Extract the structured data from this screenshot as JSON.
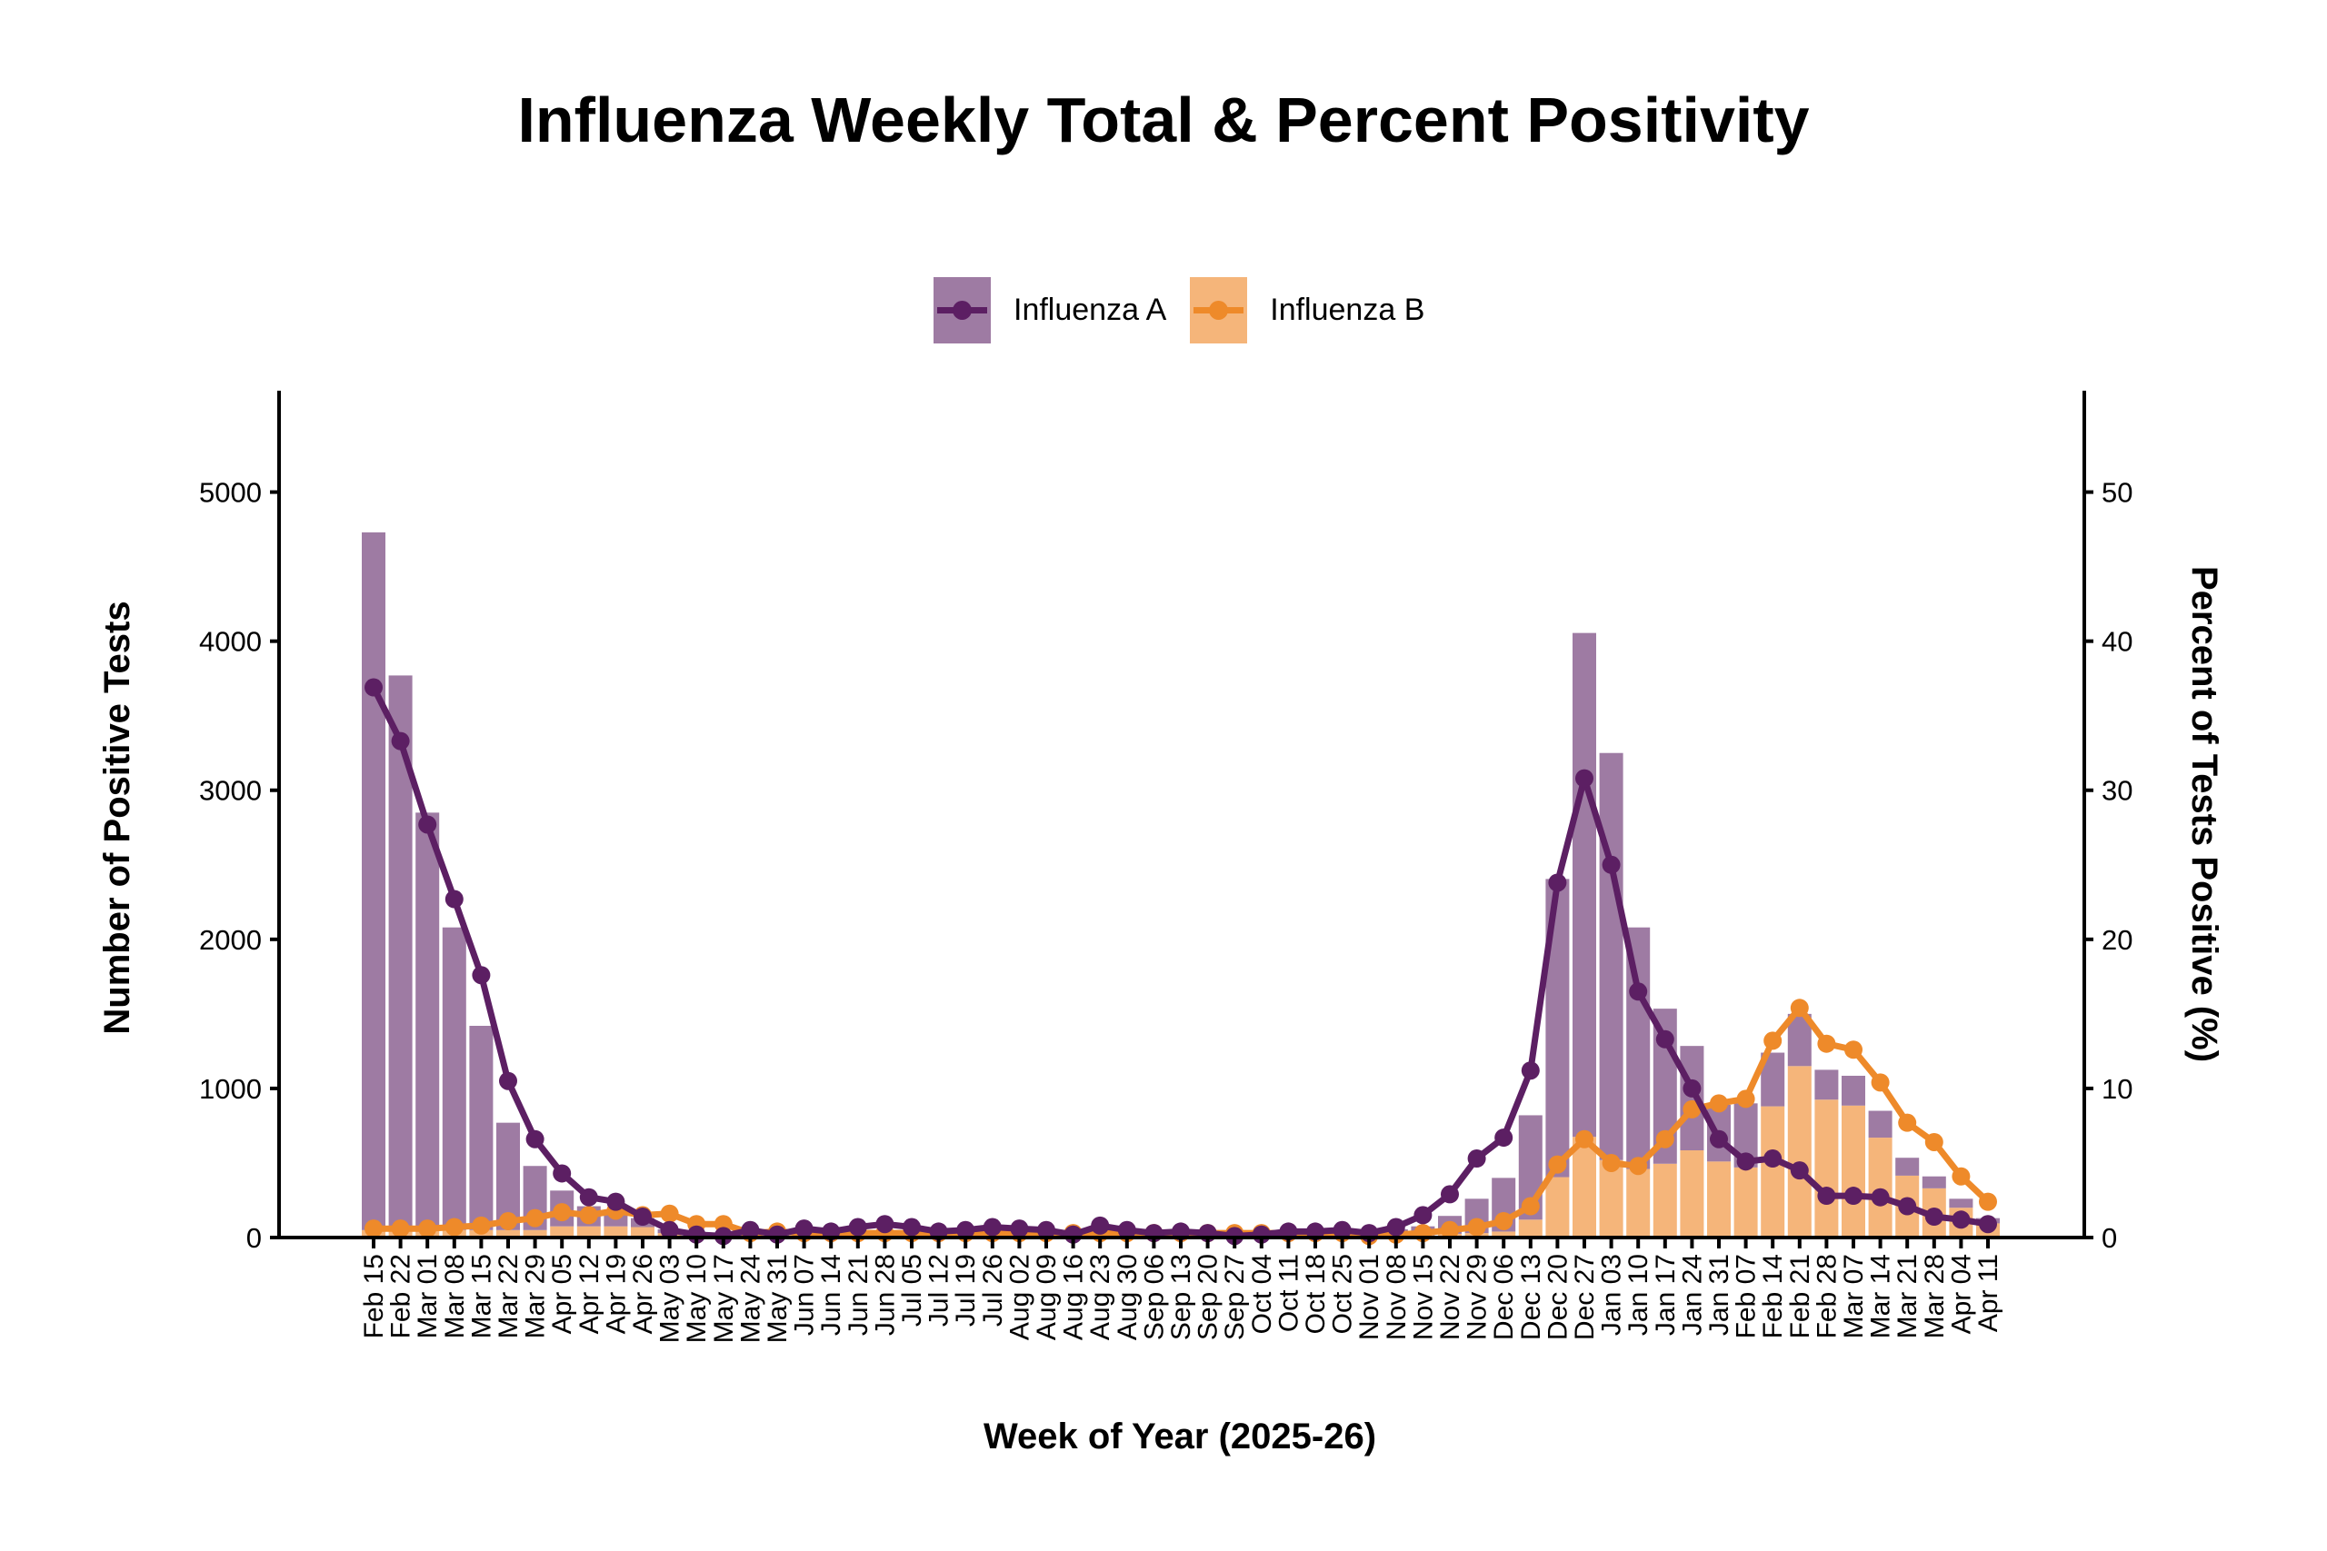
{
  "chart_data": {
    "type": "bar+line",
    "title": "Influenza Weekly Total & Percent Positivity",
    "xlabel": "Week of Year (2025-26)",
    "ylabel": "Number of Positive Tests",
    "ylabel_right": "Percent of Tests Positive (%)",
    "ylim": [
      0,
      5680
    ],
    "ylim_right": [
      0,
      56.8
    ],
    "yticks": [
      0,
      1000,
      2000,
      3000,
      4000,
      5000
    ],
    "yticks_right": [
      0,
      10,
      20,
      30,
      40,
      50
    ],
    "grid": false,
    "legend_position": "top-center",
    "categories": [
      "Feb 15",
      "Feb 22",
      "Mar 01",
      "Mar 08",
      "Mar 15",
      "Mar 22",
      "Mar 29",
      "Apr 05",
      "Apr 12",
      "Apr 19",
      "Apr 26",
      "May 03",
      "May 10",
      "May 17",
      "May 24",
      "May 31",
      "Jun 07",
      "Jun 14",
      "Jun 21",
      "Jun 28",
      "Jul 05",
      "Jul 12",
      "Jul 19",
      "Jul 26",
      "Aug 02",
      "Aug 09",
      "Aug 16",
      "Aug 23",
      "Aug 30",
      "Sep 06",
      "Sep 13",
      "Sep 20",
      "Sep 27",
      "Oct 04",
      "Oct 11",
      "Oct 18",
      "Oct 25",
      "Nov 01",
      "Nov 08",
      "Nov 15",
      "Nov 22",
      "Nov 29",
      "Dec 06",
      "Dec 13",
      "Dec 20",
      "Dec 27",
      "Jan 03",
      "Jan 10",
      "Jan 17",
      "Jan 24",
      "Jan 31",
      "Feb 07",
      "Feb 14",
      "Feb 21",
      "Feb 28",
      "Mar 07",
      "Mar 14",
      "Mar 21",
      "Mar 28",
      "Apr 04",
      "Apr 11"
    ],
    "series": [
      {
        "name": "Influenza A",
        "kind": "bar-stacked",
        "color": "#9e7ba3",
        "values": [
          4680,
          3720,
          2800,
          2030,
          1370,
          720,
          430,
          240,
          135,
          100,
          60,
          25,
          15,
          10,
          10,
          10,
          10,
          10,
          10,
          10,
          10,
          10,
          10,
          10,
          10,
          10,
          10,
          10,
          10,
          10,
          10,
          10,
          10,
          10,
          10,
          10,
          15,
          20,
          45,
          60,
          120,
          230,
          360,
          700,
          2000,
          3380,
          2730,
          1620,
          1040,
          700,
          380,
          430,
          360,
          350,
          200,
          200,
          180,
          120,
          80,
          60,
          35
        ]
      },
      {
        "name": "Influenza B",
        "kind": "bar-stacked",
        "color": "#f5b57a",
        "values": [
          50,
          50,
          50,
          50,
          50,
          50,
          50,
          75,
          75,
          75,
          70,
          30,
          20,
          15,
          10,
          10,
          10,
          10,
          10,
          10,
          10,
          10,
          10,
          10,
          10,
          10,
          10,
          10,
          10,
          10,
          10,
          10,
          10,
          10,
          10,
          10,
          10,
          10,
          10,
          15,
          25,
          30,
          40,
          120,
          405,
          675,
          520,
          460,
          495,
          585,
          510,
          470,
          880,
          1150,
          925,
          885,
          670,
          415,
          330,
          200,
          95
        ]
      },
      {
        "name": "Influenza A",
        "kind": "line",
        "color": "#5c1f63",
        "values": [
          36.9,
          33.3,
          27.7,
          22.7,
          17.6,
          10.5,
          6.6,
          4.3,
          2.7,
          2.4,
          1.4,
          0.5,
          0.2,
          0.1,
          0.5,
          0.2,
          0.6,
          0.4,
          0.7,
          0.9,
          0.7,
          0.4,
          0.5,
          0.7,
          0.6,
          0.5,
          0.2,
          0.8,
          0.5,
          0.3,
          0.4,
          0.3,
          0.1,
          0.2,
          0.4,
          0.4,
          0.5,
          0.3,
          0.7,
          1.5,
          2.9,
          5.3,
          6.7,
          11.2,
          23.8,
          30.8,
          25.0,
          16.5,
          13.3,
          10.0,
          6.6,
          5.1,
          5.3,
          4.5,
          2.8,
          2.8,
          2.7,
          2.1,
          1.4,
          1.2,
          0.9
        ]
      },
      {
        "name": "Influenza B",
        "kind": "line",
        "color": "#ee8a2a",
        "values": [
          0.6,
          0.6,
          0.6,
          0.7,
          0.8,
          1.1,
          1.3,
          1.7,
          1.5,
          1.8,
          1.5,
          1.6,
          0.9,
          0.9,
          0.3,
          0.4,
          0.3,
          0.3,
          0.3,
          0.3,
          0.3,
          0.3,
          0.3,
          0.3,
          0.3,
          0.3,
          0.3,
          0.3,
          0.3,
          0.3,
          0.3,
          0.3,
          0.3,
          0.3,
          0.3,
          0.3,
          0.3,
          0.1,
          0.2,
          0.3,
          0.5,
          0.7,
          1.1,
          2.1,
          4.9,
          6.6,
          5.0,
          4.8,
          6.6,
          8.6,
          9.0,
          9.3,
          13.2,
          15.4,
          13.0,
          12.6,
          10.4,
          7.7,
          6.4,
          4.1,
          2.4
        ]
      }
    ],
    "legend": [
      {
        "label": "Influenza A",
        "bar_color": "#9e7ba3",
        "line_color": "#5c1f63"
      },
      {
        "label": "Influenza B",
        "bar_color": "#f5b57a",
        "line_color": "#ee8a2a"
      }
    ]
  }
}
